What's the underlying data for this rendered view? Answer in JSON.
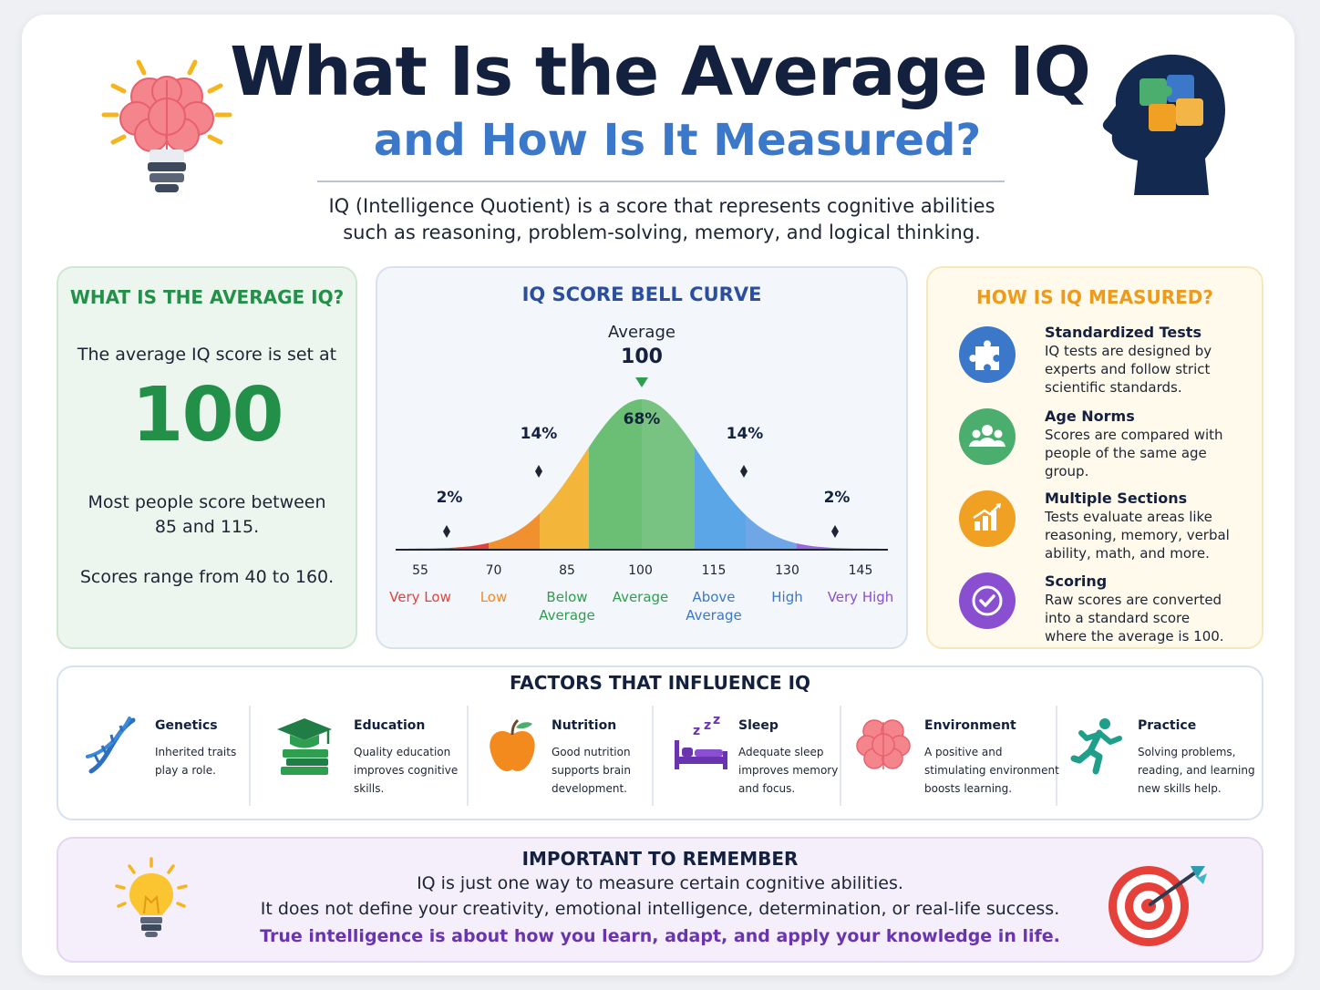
{
  "header": {
    "title": "What Is the Average IQ",
    "subtitle": "and How Is It Measured?",
    "intro_line1": "IQ (Intelligence Quotient) is a score that represents cognitive abilities",
    "intro_line2": "such as reasoning, problem-solving, memory, and logical thinking."
  },
  "average_panel": {
    "heading": "WHAT IS THE AVERAGE IQ?",
    "line1": "The average IQ score is set at",
    "big_value": "100",
    "line2a": "Most people score between",
    "line2b": "85 and 115.",
    "line3": "Scores range from 40 to 160."
  },
  "curve_panel": {
    "heading": "IQ SCORE BELL CURVE",
    "avg_label": "Average",
    "avg_value": "100",
    "percent_center": "68%",
    "percent_left_mid": "14%",
    "percent_right_mid": "14%",
    "percent_left_tail": "2%",
    "percent_right_tail": "2%",
    "ticks": [
      "55",
      "70",
      "85",
      "100",
      "115",
      "130",
      "145"
    ],
    "bands": [
      {
        "line1": "Very Low",
        "line2": "",
        "color": "#e5413a"
      },
      {
        "line1": "Low",
        "line2": "",
        "color": "#f08a2a"
      },
      {
        "line1": "Below",
        "line2": "Average",
        "color": "#2e9e4f"
      },
      {
        "line1": "Average",
        "line2": "",
        "color": "#2e9e4f"
      },
      {
        "line1": "Above",
        "line2": "Average",
        "color": "#3b78c9"
      },
      {
        "line1": "High",
        "line2": "",
        "color": "#3b78c9"
      },
      {
        "line1": "Very High",
        "line2": "",
        "color": "#8a4fd1"
      }
    ]
  },
  "measure_panel": {
    "heading": "HOW IS IQ MEASURED?",
    "items": [
      {
        "title": "Standardized Tests",
        "l1": "IQ tests are designed by",
        "l2": "experts and follow strict",
        "l3": "scientific standards.",
        "icon": "puzzle-icon",
        "color": "#3b78c9"
      },
      {
        "title": "Age Norms",
        "l1": "Scores are compared with",
        "l2": "people of the same age",
        "l3": "group.",
        "icon": "people-icon",
        "color": "#4cae6e"
      },
      {
        "title": "Multiple Sections",
        "l1": "Tests evaluate areas like",
        "l2": "reasoning, memory, verbal",
        "l3": "ability, math, and more.",
        "icon": "chart-icon",
        "color": "#f0a023"
      },
      {
        "title": "Scoring",
        "l1": "Raw scores are converted",
        "l2": "into a standard score",
        "l3": "where the average is 100.",
        "icon": "check-icon",
        "color": "#8a4fd1"
      }
    ]
  },
  "factors": {
    "heading": "FACTORS THAT INFLUENCE IQ",
    "items": [
      {
        "title": "Genetics",
        "l1": "Inherited traits",
        "l2": "play a role.",
        "l3": "",
        "icon": "dna-icon"
      },
      {
        "title": "Education",
        "l1": "Quality education",
        "l2": "improves cognitive",
        "l3": "skills.",
        "icon": "graduation-books-icon"
      },
      {
        "title": "Nutrition",
        "l1": "Good nutrition",
        "l2": "supports brain",
        "l3": "development.",
        "icon": "apple-icon"
      },
      {
        "title": "Sleep",
        "l1": "Adequate sleep",
        "l2": "improves memory",
        "l3": "and focus.",
        "icon": "bed-zzz-icon"
      },
      {
        "title": "Environment",
        "l1": "A positive and",
        "l2": "stimulating environment",
        "l3": "boosts learning.",
        "icon": "brain-icon"
      },
      {
        "title": "Practice",
        "l1": "Solving problems,",
        "l2": "reading, and learning",
        "l3": "new skills help.",
        "icon": "runner-icon"
      }
    ]
  },
  "remember": {
    "heading": "IMPORTANT TO REMEMBER",
    "line1": "IQ is just one way to measure certain cognitive abilities.",
    "line2": "It does not define your creativity, emotional intelligence, determination, or real-life success.",
    "line3": "True intelligence is about how you learn, adapt, and apply your knowledge in life."
  }
}
